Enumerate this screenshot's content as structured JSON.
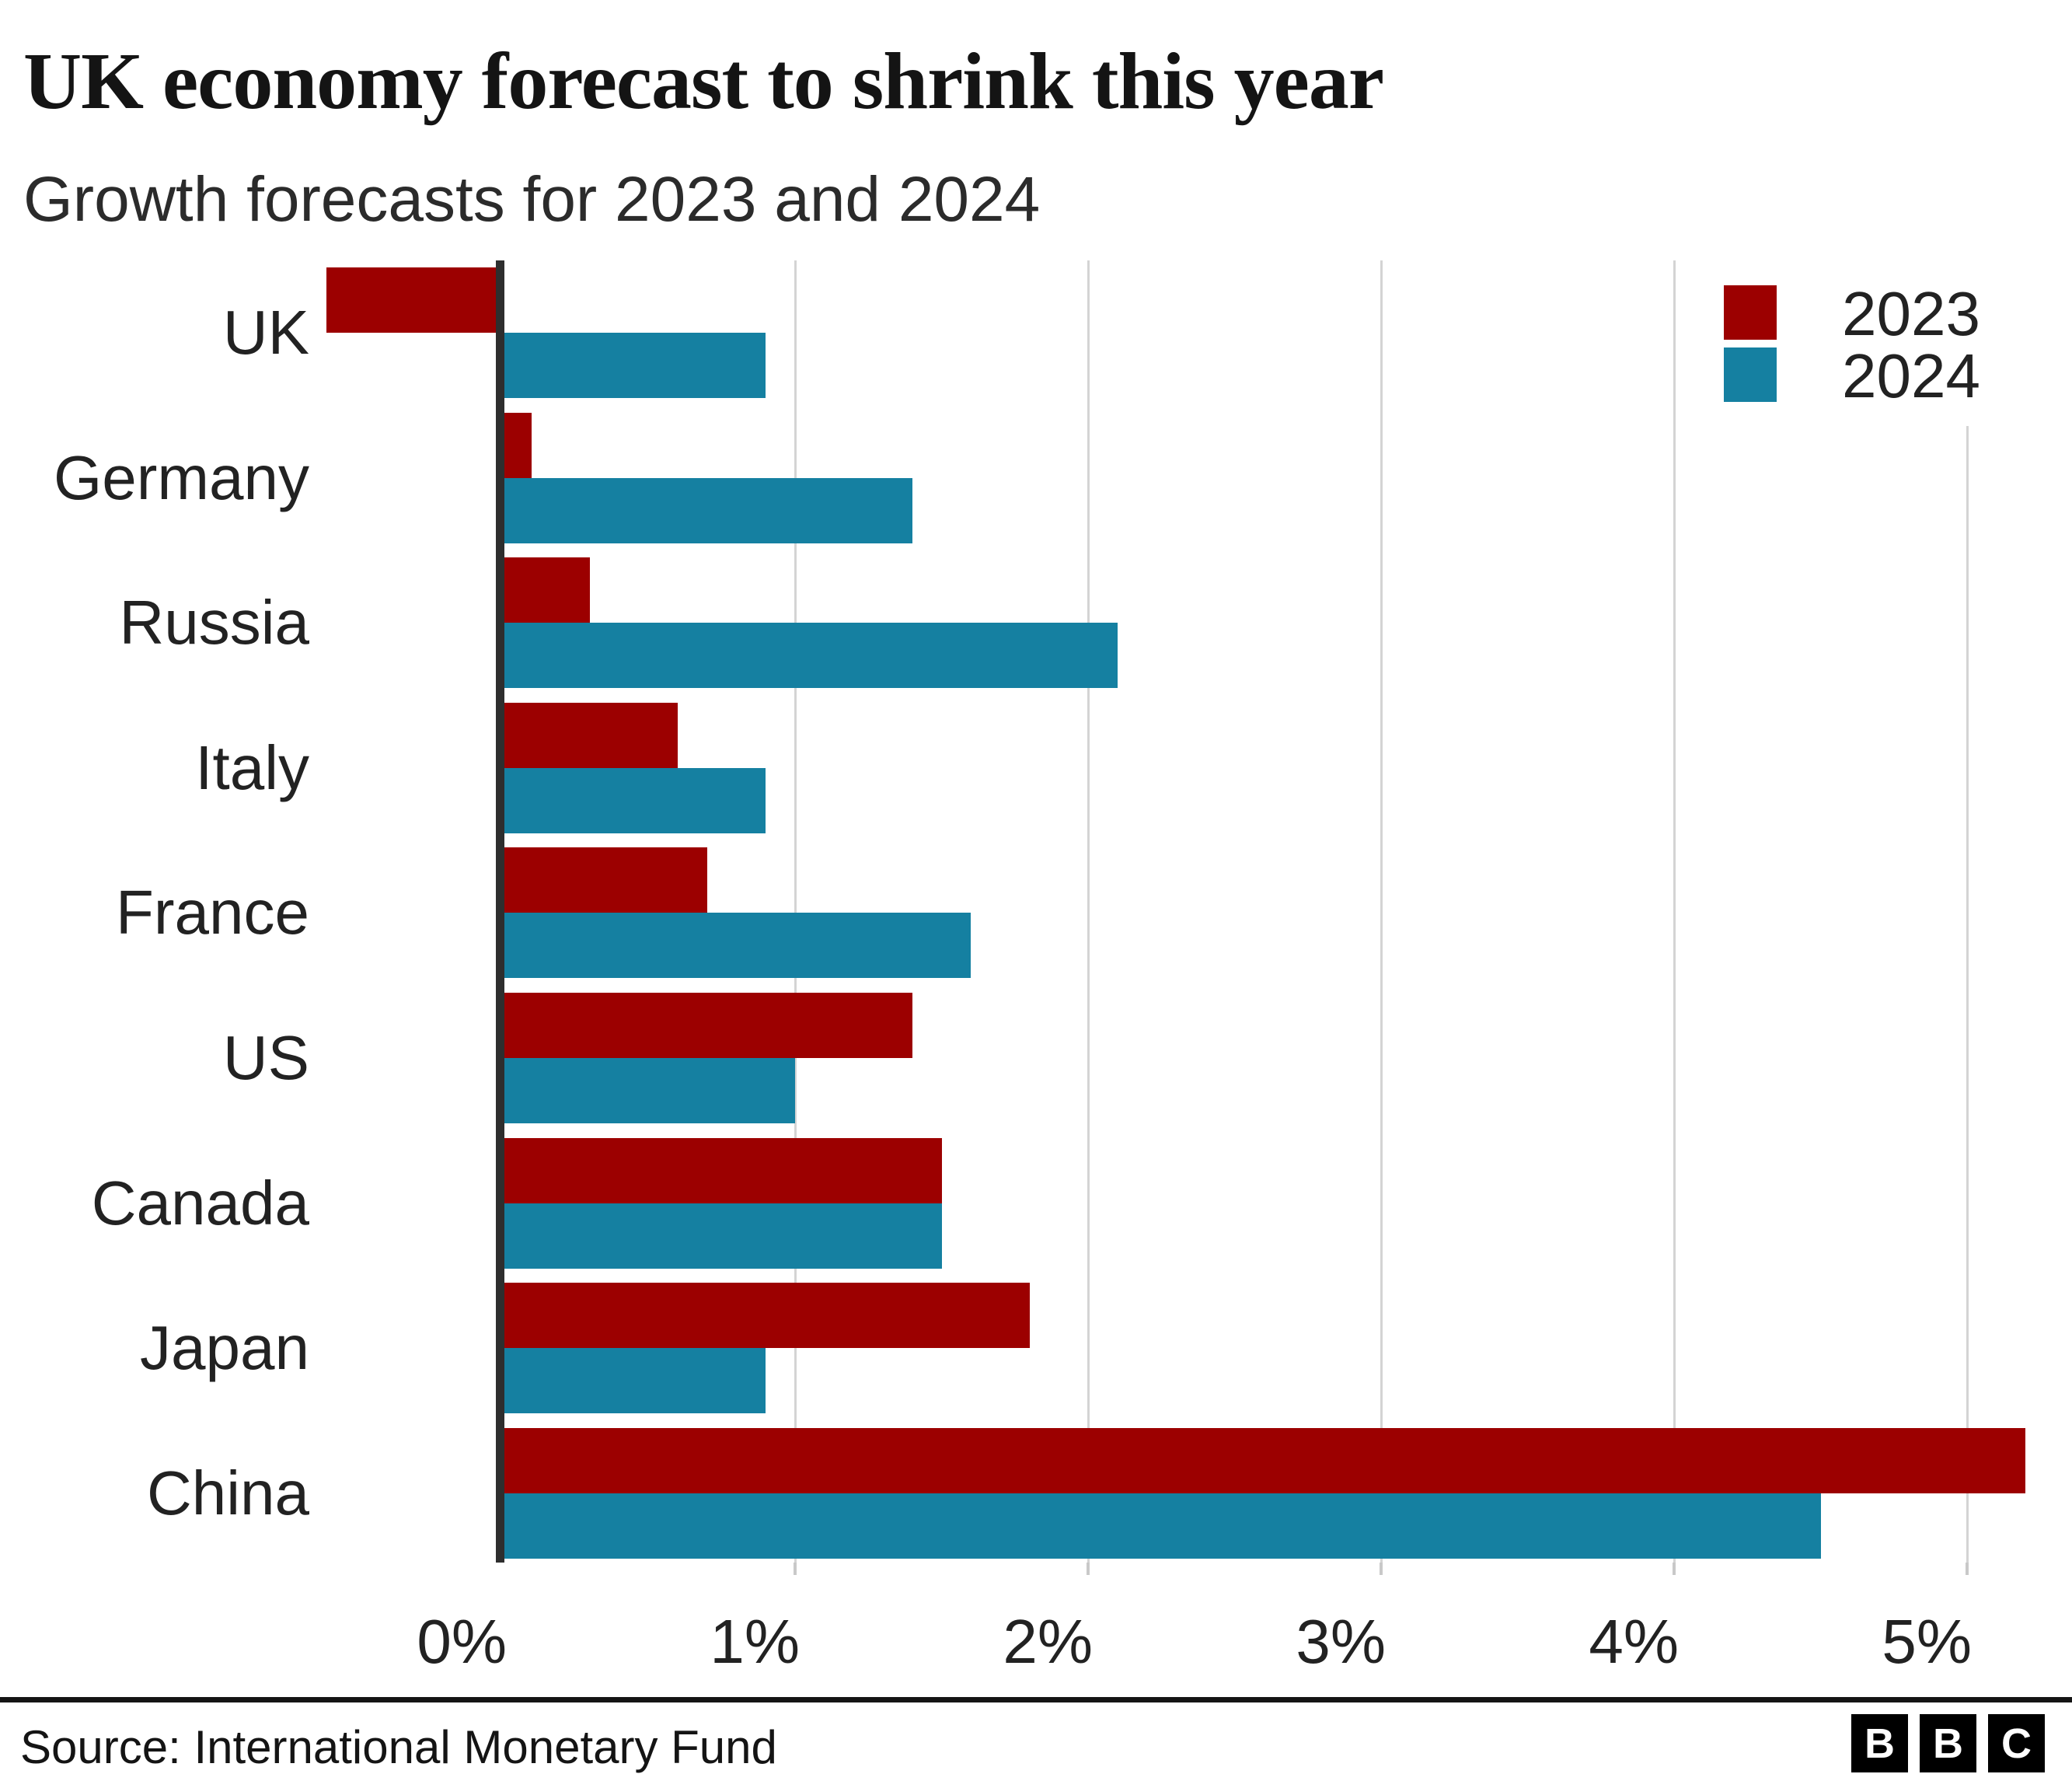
{
  "title": "UK economy forecast to shrink this year",
  "subtitle": "Growth forecasts for 2023 and 2024",
  "legend": {
    "items": [
      {
        "label": "2023",
        "color": "#9c0000"
      },
      {
        "label": "2024",
        "color": "#1580a1"
      }
    ]
  },
  "source": "Source: International Monetary Fund",
  "logo": {
    "letters": [
      "B",
      "B",
      "C"
    ]
  },
  "colors": {
    "series_2023": "#9c0000",
    "series_2024": "#1580a1",
    "axis": "#2e2e2e",
    "gridline": "#d4d4d4",
    "text": "#222222"
  },
  "chart_data": {
    "type": "bar",
    "orientation": "horizontal",
    "title": "UK economy forecast to shrink this year",
    "subtitle": "Growth forecasts for 2023 and 2024",
    "categories": [
      "UK",
      "Germany",
      "Russia",
      "Italy",
      "France",
      "US",
      "Canada",
      "Japan",
      "China"
    ],
    "series": [
      {
        "name": "2023",
        "color": "#9c0000",
        "values": [
          -0.6,
          0.1,
          0.3,
          0.6,
          0.7,
          1.4,
          1.5,
          1.8,
          5.2
        ]
      },
      {
        "name": "2024",
        "color": "#1580a1",
        "values": [
          0.9,
          1.4,
          2.1,
          0.9,
          1.6,
          1.0,
          1.5,
          0.9,
          4.5
        ]
      }
    ],
    "x_ticks": [
      "0%",
      "1%",
      "2%",
      "3%",
      "4%",
      "5%"
    ],
    "x_tick_values": [
      0,
      1,
      2,
      3,
      4,
      5
    ],
    "xlim": [
      -0.65,
      5.35
    ],
    "unit": "percent",
    "grid": true,
    "legend_position": "top-right"
  }
}
